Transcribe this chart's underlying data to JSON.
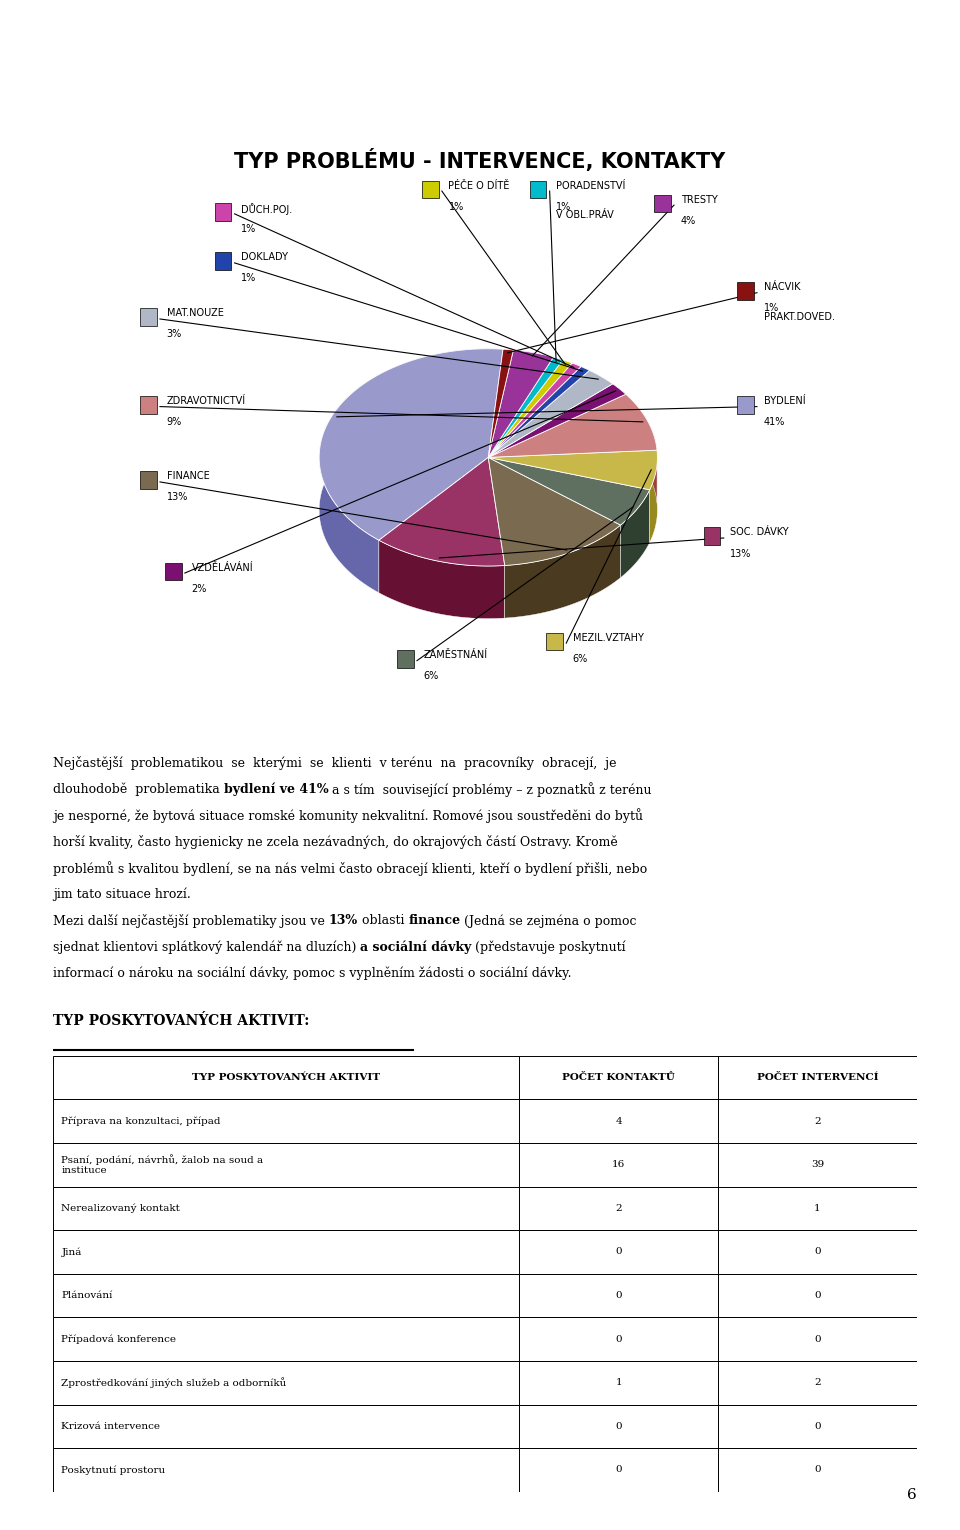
{
  "title": "TYP PROBLÉMU - INTERVENCE, KONTAKTY",
  "slices": [
    {
      "label": "BYDLENÍ",
      "pct": 41,
      "color": "#9999cc",
      "dark": "#6666aa"
    },
    {
      "label": "SOC. DÁVKY",
      "pct": 13,
      "color": "#993366",
      "dark": "#661133"
    },
    {
      "label": "FINANCE",
      "pct": 13,
      "color": "#7a6a50",
      "dark": "#4a3a20"
    },
    {
      "label": "ZAMĚSTNÁNÍ",
      "pct": 6,
      "color": "#607060",
      "dark": "#304030"
    },
    {
      "label": "MEZIL.VZTAHY",
      "pct": 6,
      "color": "#c8b84a",
      "dark": "#988820"
    },
    {
      "label": "ZDRAVOTNICTVÍ",
      "pct": 9,
      "color": "#cc8080",
      "dark": "#994040"
    },
    {
      "label": "VZDĚLÁVÁNÍ",
      "pct": 2,
      "color": "#7a1070",
      "dark": "#4a0040"
    },
    {
      "label": "MAT.NOUZE",
      "pct": 3,
      "color": "#b0b8c8",
      "dark": "#8090a8"
    },
    {
      "label": "DOKLADY",
      "pct": 1,
      "color": "#2244aa",
      "dark": "#001480"
    },
    {
      "label": "DŮCH.POJ.",
      "pct": 1,
      "color": "#cc44aa",
      "dark": "#993380"
    },
    {
      "label": "PÉČE O DÍTĚ",
      "pct": 1,
      "color": "#cccc00",
      "dark": "#999900"
    },
    {
      "label": "PORADENSTVÍ\nV OBL.PRÁV",
      "pct": 1,
      "color": "#00bbcc",
      "dark": "#008899"
    },
    {
      "label": "TRESTY",
      "pct": 4,
      "color": "#993399",
      "dark": "#661166"
    },
    {
      "label": "NÁCVIK\nPRAKT.DOVED.",
      "pct": 1,
      "color": "#881111",
      "dark": "#551111"
    }
  ],
  "legend_layout": [
    {
      "key": "DŮCH.POJ.",
      "side": "left",
      "row": 0
    },
    {
      "key": "DOKLADY",
      "side": "left",
      "row": 1
    },
    {
      "key": "MAT.NOUZE",
      "side": "left",
      "row": 2
    },
    {
      "key": "ZDRAVOTNICTVÍ",
      "side": "left",
      "row": 3
    },
    {
      "key": "FINANCE",
      "side": "left",
      "row": 4
    },
    {
      "key": "VZDĚLÁVÁNÍ",
      "side": "left",
      "row": 5
    },
    {
      "key": "ZAMĚSTNÁNÍ",
      "side": "bottom",
      "row": 0
    },
    {
      "key": "MEZIL.VZTAHY",
      "side": "bottom",
      "row": 1
    },
    {
      "key": "SOC. DÁVKY",
      "side": "right",
      "row": 3
    },
    {
      "key": "BYDLENÍ",
      "side": "right",
      "row": 4
    },
    {
      "key": "NÁCVIK\nPRAKT.DOVED.",
      "side": "right",
      "row": 2
    },
    {
      "key": "TRESTY",
      "side": "top",
      "row": 2
    },
    {
      "key": "PORADENSTVÍ\nV OBL.PRÁV",
      "side": "top",
      "row": 1
    },
    {
      "key": "PÉČE O DÍTĚ",
      "side": "top",
      "row": 0
    }
  ],
  "body_para1": "Nejčastější  problematikou  se  kterými  se  klienti  v terénu  na  pracovníky  obracejí,  je dlouhodobě  problematika",
  "body_bold1": "bydlení ve 41%",
  "body_para1b": " a s tím  související problémy – z poznatků z terénu je nesporné, že bytová situace romské komunity nekvalitní. Romové jsou soustředěni do bytů horší kvality, často hygienicky ne zcela nezávadných, do okrajových částí Ostravy. Kromě problémů s kvalitou bydlení, se na nás velmi často obracejí klienti, kteří o bydlení přišli, nebo jim tato situace hrozí.",
  "body_para2a": "Mezi další nejčastější problematiky jsou ve ",
  "body_bold2": "13%",
  "body_para2b": " oblasti ",
  "body_bold3": "finance",
  "body_para2c": " (Jedná se zejména o pomoc sjednat klientovi splátkový kalendář na dluzích) ",
  "body_bold4": "a sociální dávky",
  "body_para2d": " (představuje poskytnutí informací o nároku na sociální dávky, pomoc s vyplněním žádosti o sociální dávky.",
  "section_title": "TYP POSKYTOVANÝCH AKTIVIT:",
  "table_headers": [
    "TYP POSKYTOVANÝCH AKTIVIT",
    "POČET KONTAKTŮ",
    "POČET INTERVENCÍ"
  ],
  "table_rows": [
    [
      "Příprava na konzultaci, případ",
      "4",
      "2"
    ],
    [
      "Psaní, podání, návrhů, žalob na soud a\ninstituce",
      "16",
      "39"
    ],
    [
      "Nerealizovaný kontakt",
      "2",
      "1"
    ],
    [
      "Jiná",
      "0",
      "0"
    ],
    [
      "Plánování",
      "0",
      "0"
    ],
    [
      "Případová konference",
      "0",
      "0"
    ],
    [
      "Zprostředkování jiných služeb a odborníků",
      "1",
      "2"
    ],
    [
      "Krizová intervence",
      "0",
      "0"
    ],
    [
      "Poskytnutí prostoru",
      "0",
      "0"
    ]
  ],
  "page_number": "6"
}
